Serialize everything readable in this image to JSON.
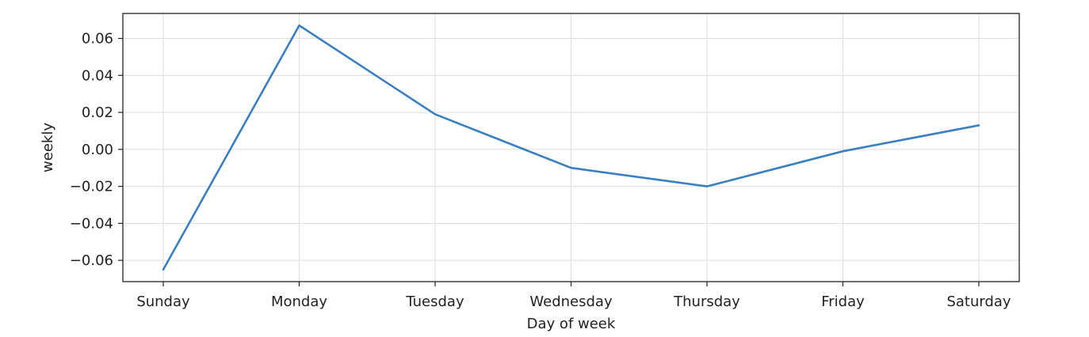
{
  "chart_data": {
    "type": "line",
    "title": "",
    "xlabel": "Day of week",
    "ylabel": "weekly",
    "categories": [
      "Sunday",
      "Monday",
      "Tuesday",
      "Wednesday",
      "Thursday",
      "Friday",
      "Saturday"
    ],
    "series": [
      {
        "values": [
          -0.065,
          0.067,
          0.019,
          -0.01,
          -0.02,
          -0.001,
          0.013
        ],
        "color": "#3a7fbf"
      }
    ],
    "yticks": [
      -0.06,
      -0.04,
      -0.02,
      0.0,
      0.02,
      0.04,
      0.06
    ],
    "ytick_labels": [
      "−0.06",
      "−0.04",
      "−0.02",
      "0.00",
      "0.02",
      "0.04",
      "0.06"
    ],
    "ylim": [
      -0.0715,
      0.0735
    ],
    "grid": true,
    "legend": "none",
    "colors": {
      "grid": "#dddddd",
      "axes": "#222222",
      "line": "#3a7fbf",
      "text": "#222222"
    }
  }
}
